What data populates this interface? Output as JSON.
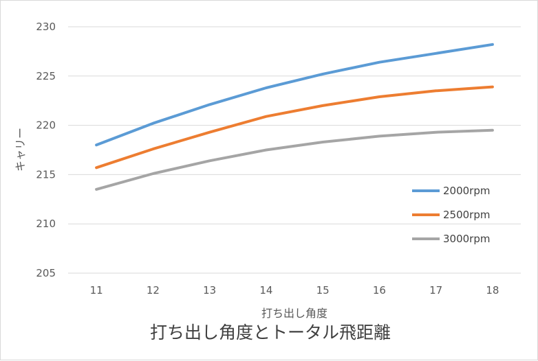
{
  "chart_data": {
    "type": "line",
    "title": "打ち出し角度とトータル飛距離",
    "xlabel": "打ち出し角度",
    "ylabel": "キャリー",
    "categories": [
      "11",
      "12",
      "13",
      "14",
      "15",
      "16",
      "17",
      "18"
    ],
    "ylim": [
      205,
      230
    ],
    "yticks": [
      "230",
      "225",
      "220",
      "215",
      "210",
      "205"
    ],
    "grid": true,
    "legend_position": "right",
    "series": [
      {
        "name": "2000rpm",
        "color": "#5b9bd5",
        "values": [
          218.0,
          220.2,
          222.1,
          223.8,
          225.2,
          226.4,
          227.3,
          228.2
        ]
      },
      {
        "name": "2500rpm",
        "color": "#ed7d31",
        "values": [
          215.7,
          217.6,
          219.3,
          220.9,
          222.0,
          222.9,
          223.5,
          223.9
        ]
      },
      {
        "name": "3000rpm",
        "color": "#a5a5a5",
        "values": [
          213.5,
          215.1,
          216.4,
          217.5,
          218.3,
          218.9,
          219.3,
          219.5
        ]
      }
    ]
  }
}
